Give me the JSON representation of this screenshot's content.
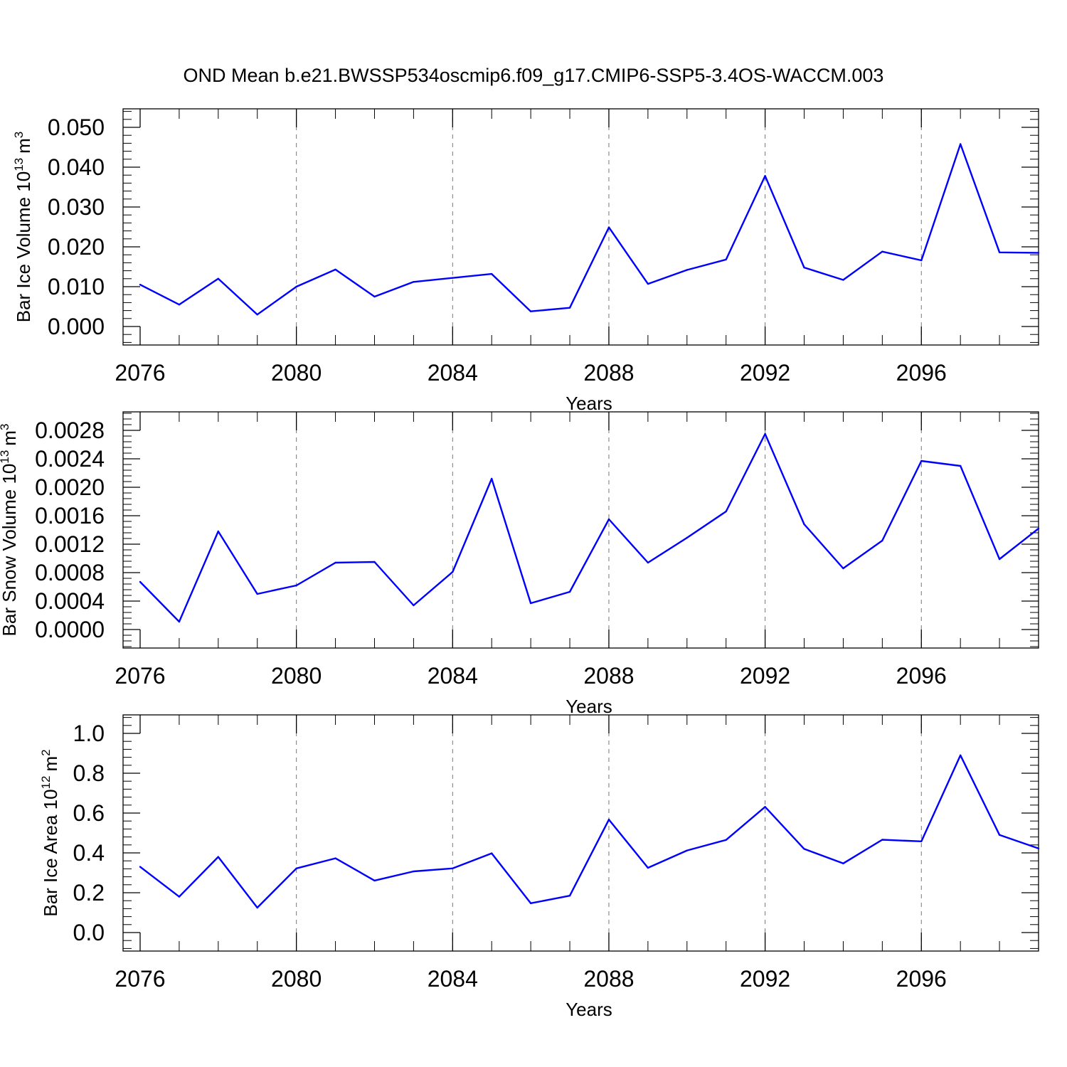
{
  "title": "OND Mean b.e21.BWSSP534oscmip6.f09_g17.CMIP6-SSP5-3.4OS-WACCM.003",
  "colors": {
    "line": "#0000ff",
    "grid": "#777777",
    "axis": "#000000"
  },
  "chart_data": [
    {
      "type": "line",
      "xlabel": "Years",
      "ylabel": "Bar Ice Volume 10",
      "ylabel_exponent": "13",
      "ylabel_unit": "m",
      "ylabel_unit_exponent": "3",
      "xlim": [
        2076,
        2099
      ],
      "ylim": [
        0,
        0.05
      ],
      "x_ticks": [
        2076,
        2080,
        2084,
        2088,
        2092,
        2096
      ],
      "x_tick_labels": [
        "2076",
        "2080",
        "2084",
        "2088",
        "2092",
        "2096"
      ],
      "y_ticks": [
        0,
        0.01,
        0.02,
        0.03,
        0.04,
        0.05
      ],
      "y_tick_labels": [
        "0.000",
        "0.010",
        "0.020",
        "0.030",
        "0.040",
        "0.050"
      ],
      "grid": "vertical dashed at labeled x ticks",
      "x": [
        2076,
        2077,
        2078,
        2079,
        2080,
        2081,
        2082,
        2083,
        2084,
        2085,
        2086,
        2087,
        2088,
        2089,
        2090,
        2091,
        2092,
        2093,
        2094,
        2095,
        2096,
        2097,
        2098,
        2099
      ],
      "values": [
        0.0105,
        0.0055,
        0.012,
        0.003,
        0.01,
        0.0143,
        0.0075,
        0.0112,
        0.0122,
        0.0132,
        0.0038,
        0.0047,
        0.0249,
        0.0107,
        0.0142,
        0.0168,
        0.0378,
        0.0148,
        0.0117,
        0.0188,
        0.0166,
        0.0458,
        0.0186,
        0.0185
      ]
    },
    {
      "type": "line",
      "xlabel": "Years",
      "ylabel": "Bar Snow Volume 10",
      "ylabel_exponent": "13",
      "ylabel_unit": "m",
      "ylabel_unit_exponent": "3",
      "xlim": [
        2076,
        2099
      ],
      "ylim": [
        0,
        0.0028
      ],
      "x_ticks": [
        2076,
        2080,
        2084,
        2088,
        2092,
        2096
      ],
      "x_tick_labels": [
        "2076",
        "2080",
        "2084",
        "2088",
        "2092",
        "2096"
      ],
      "y_ticks": [
        0,
        0.0004,
        0.0008,
        0.0012,
        0.0016,
        0.002,
        0.0024,
        0.0028
      ],
      "y_tick_labels": [
        "0.0000",
        "0.0004",
        "0.0008",
        "0.0012",
        "0.0016",
        "0.0020",
        "0.0024",
        "0.0028"
      ],
      "grid": "vertical dashed at labeled x ticks",
      "x": [
        2076,
        2077,
        2078,
        2079,
        2080,
        2081,
        2082,
        2083,
        2084,
        2085,
        2086,
        2087,
        2088,
        2089,
        2090,
        2091,
        2092,
        2093,
        2094,
        2095,
        2096,
        2097,
        2098,
        2099
      ],
      "values": [
        0.00067,
        0.00011,
        0.00138,
        0.0005,
        0.00062,
        0.00094,
        0.00095,
        0.00034,
        0.00081,
        0.00212,
        0.00037,
        0.00053,
        0.00155,
        0.00094,
        0.00129,
        0.00166,
        0.00275,
        0.00148,
        0.00086,
        0.00125,
        0.00237,
        0.0023,
        0.00099,
        0.00142
      ]
    },
    {
      "type": "line",
      "xlabel": "Years",
      "ylabel": "Bar Ice Area 10",
      "ylabel_exponent": "12",
      "ylabel_unit": "m",
      "ylabel_unit_exponent": "2",
      "xlim": [
        2076,
        2099
      ],
      "ylim": [
        0,
        1.0
      ],
      "x_ticks": [
        2076,
        2080,
        2084,
        2088,
        2092,
        2096
      ],
      "x_tick_labels": [
        "2076",
        "2080",
        "2084",
        "2088",
        "2092",
        "2096"
      ],
      "y_ticks": [
        0,
        0.2,
        0.4,
        0.6,
        0.8,
        1.0
      ],
      "y_tick_labels": [
        "0.0",
        "0.2",
        "0.4",
        "0.6",
        "0.8",
        "1.0"
      ],
      "grid": "vertical dashed at labeled x ticks",
      "x": [
        2076,
        2077,
        2078,
        2079,
        2080,
        2081,
        2082,
        2083,
        2084,
        2085,
        2086,
        2087,
        2088,
        2089,
        2090,
        2091,
        2092,
        2093,
        2094,
        2095,
        2096,
        2097,
        2098,
        2099
      ],
      "values": [
        0.33,
        0.18,
        0.38,
        0.125,
        0.322,
        0.373,
        0.261,
        0.307,
        0.322,
        0.398,
        0.147,
        0.185,
        0.567,
        0.325,
        0.412,
        0.465,
        0.631,
        0.42,
        0.347,
        0.466,
        0.458,
        0.89,
        0.49,
        0.422
      ]
    }
  ]
}
